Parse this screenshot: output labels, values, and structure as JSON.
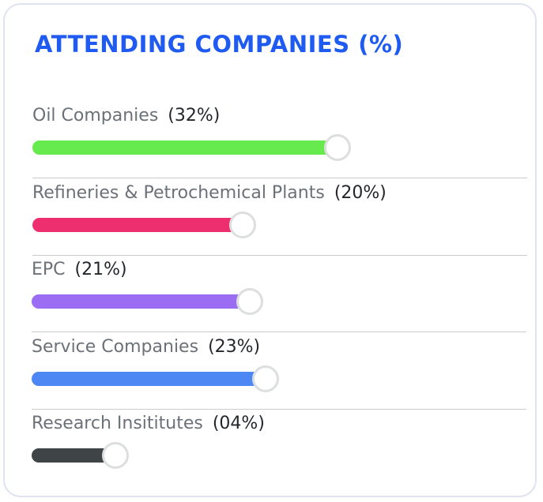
{
  "title": "ATTENDING COMPANIES (%)",
  "chart_data": {
    "type": "bar",
    "orientation": "horizontal",
    "title": "ATTENDING COMPANIES (%)",
    "categories": [
      "Oil Companies",
      "Refineries & Petrochemical Plants",
      "EPC",
      "Service Companies",
      "Research Insititutes"
    ],
    "values": [
      32,
      20,
      21,
      23,
      4
    ],
    "value_labels": [
      "(32%)",
      "(20%)",
      "(21%)",
      "(23%)",
      "(04%)"
    ],
    "colors": [
      "#66ea4e",
      "#ee2f6f",
      "#9a6df3",
      "#4d87f3",
      "#3f4447"
    ],
    "unit": "%"
  }
}
